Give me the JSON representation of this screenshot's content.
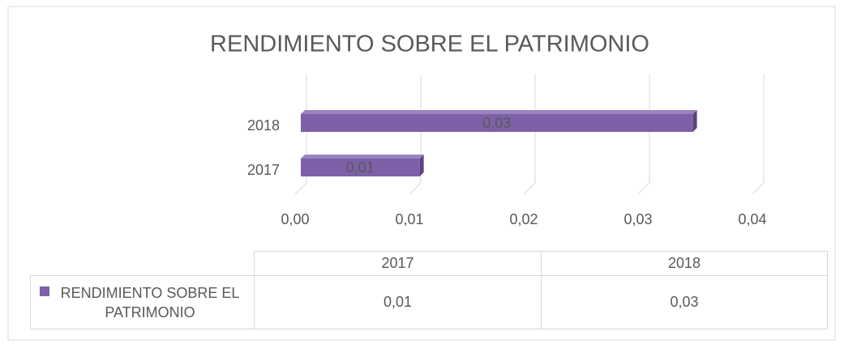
{
  "chart_data": {
    "type": "bar3d_horizontal",
    "title": "RENDIMIENTO SOBRE EL PATRIMONIO",
    "categories": [
      "2017",
      "2018"
    ],
    "series": [
      {
        "name": "RENDIMIENTO SOBRE EL PATRIMONIO",
        "color": "#7d60a8",
        "values": [
          0.0104,
          0.0343
        ],
        "value_labels": [
          "0,01",
          "0,03"
        ]
      }
    ],
    "xlim": [
      0,
      0.04
    ],
    "xticks": [
      {
        "value": 0,
        "label": "0,00"
      },
      {
        "value": 0.01,
        "label": "0,01"
      },
      {
        "value": 0.02,
        "label": "0,02"
      },
      {
        "value": 0.03,
        "label": "0,03"
      },
      {
        "value": 0.04,
        "label": "0,04"
      }
    ],
    "grid": true,
    "data_table": true
  }
}
